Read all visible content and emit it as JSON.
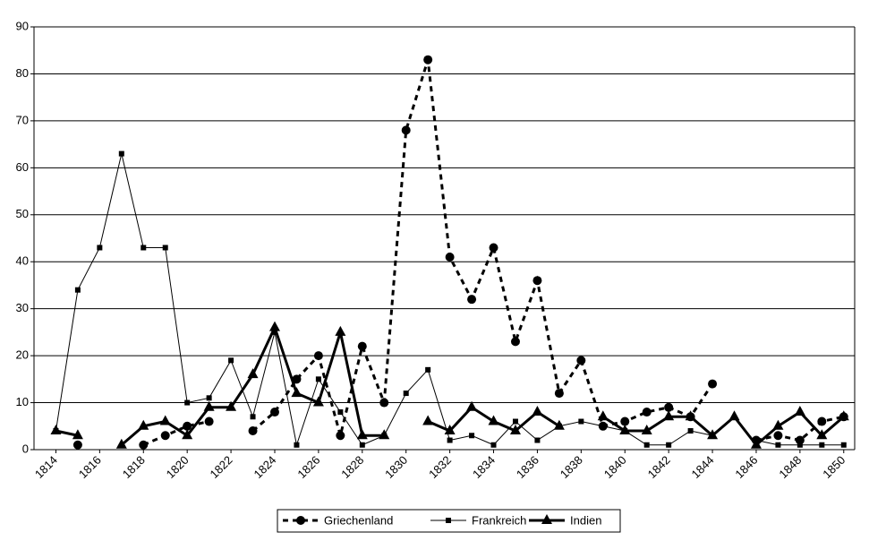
{
  "chart_data": {
    "type": "line",
    "x": [
      1814,
      1815,
      1816,
      1817,
      1818,
      1819,
      1820,
      1821,
      1822,
      1823,
      1824,
      1825,
      1826,
      1827,
      1828,
      1829,
      1830,
      1831,
      1832,
      1833,
      1834,
      1835,
      1836,
      1837,
      1838,
      1839,
      1840,
      1841,
      1842,
      1843,
      1844,
      1845,
      1846,
      1847,
      1848,
      1849,
      1850
    ],
    "series": [
      {
        "name": "Griechenland",
        "color": "#000000",
        "marker": "circle",
        "dashed": true,
        "width": 3,
        "values": [
          null,
          1,
          null,
          null,
          1,
          3,
          5,
          6,
          null,
          4,
          8,
          15,
          20,
          3,
          22,
          10,
          68,
          83,
          41,
          32,
          43,
          23,
          36,
          12,
          19,
          5,
          6,
          8,
          9,
          7,
          14,
          null,
          2,
          3,
          2,
          6,
          7
        ]
      },
      {
        "name": "Frankreich",
        "color": "#000000",
        "marker": "square",
        "dashed": false,
        "width": 1,
        "values": [
          4,
          34,
          43,
          63,
          43,
          43,
          10,
          11,
          19,
          7,
          25,
          1,
          15,
          8,
          1,
          3,
          12,
          17,
          2,
          3,
          1,
          6,
          2,
          5,
          6,
          5,
          4,
          1,
          1,
          4,
          3,
          null,
          2,
          1,
          1,
          1,
          1
        ]
      },
      {
        "name": "Indien",
        "color": "#000000",
        "marker": "triangle",
        "dashed": false,
        "width": 3,
        "values": [
          4,
          3,
          null,
          1,
          5,
          6,
          3,
          9,
          9,
          16,
          26,
          12,
          10,
          25,
          3,
          3,
          null,
          6,
          4,
          9,
          6,
          4,
          8,
          5,
          null,
          7,
          4,
          4,
          7,
          7,
          3,
          7,
          1,
          5,
          8,
          3,
          7
        ]
      }
    ],
    "xlim": [
      1813,
      1850.5
    ],
    "xticks": [
      1814,
      1816,
      1818,
      1820,
      1822,
      1824,
      1826,
      1828,
      1830,
      1832,
      1834,
      1836,
      1838,
      1840,
      1842,
      1844,
      1846,
      1848,
      1850
    ],
    "ylim": [
      0,
      90
    ],
    "yticks": [
      0,
      10,
      20,
      30,
      40,
      50,
      60,
      70,
      80,
      90
    ],
    "grid": true,
    "legend": "bottom"
  }
}
